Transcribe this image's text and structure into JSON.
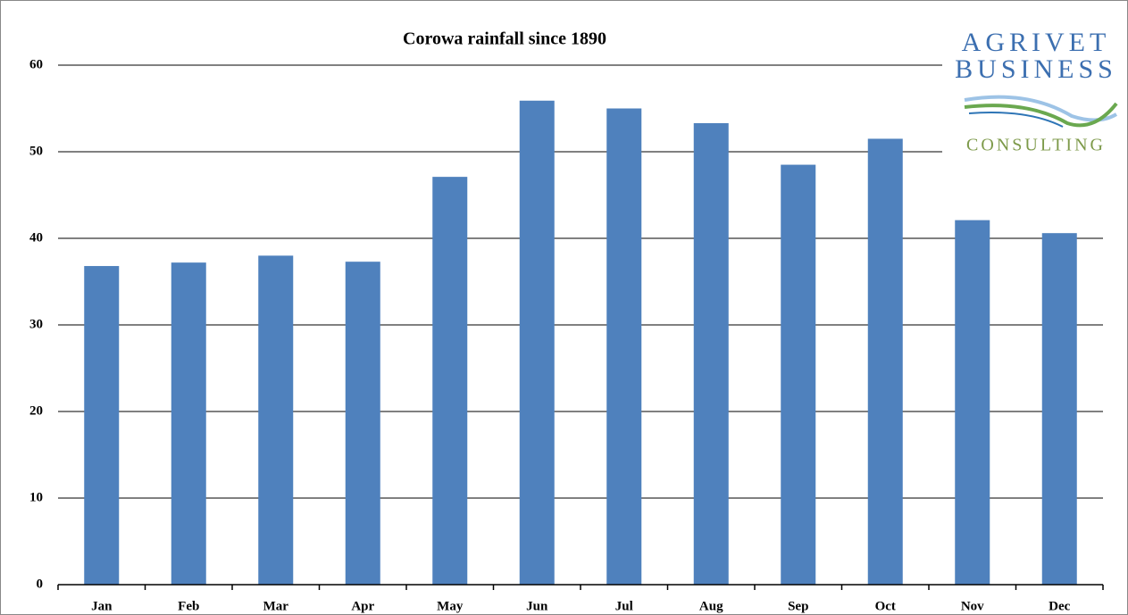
{
  "chart_data": {
    "type": "bar",
    "title": "Corowa rainfall since 1890",
    "categories": [
      "Jan",
      "Feb",
      "Mar",
      "Apr",
      "May",
      "Jun",
      "Jul",
      "Aug",
      "Sep",
      "Oct",
      "Nov",
      "Dec"
    ],
    "values": [
      36.8,
      37.2,
      38.0,
      37.3,
      47.1,
      55.9,
      55.0,
      53.3,
      48.5,
      51.5,
      42.1,
      40.6
    ],
    "color": "#4f81bd",
    "ylim": [
      0,
      60
    ],
    "yticks": [
      0,
      10,
      20,
      30,
      40,
      50,
      60
    ],
    "grid": true,
    "logo": {
      "lines": [
        "AGRIVET",
        "BUSINESS",
        "CONSULTING"
      ]
    }
  }
}
